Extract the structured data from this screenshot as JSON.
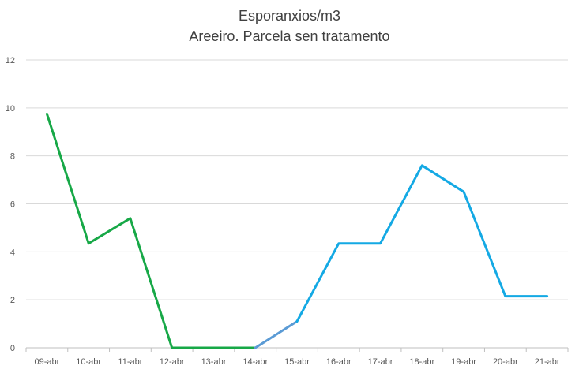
{
  "chart_data": {
    "type": "line",
    "title": "Esporanxios/m3",
    "subtitle": "Areeiro. Parcela sen tratamento",
    "xlabel": "",
    "ylabel": "",
    "categories": [
      "09-abr",
      "10-abr",
      "11-abr",
      "12-abr",
      "13-abr",
      "14-abr",
      "15-abr",
      "16-abr",
      "17-abr",
      "18-abr",
      "19-abr",
      "20-abr",
      "21-abr"
    ],
    "values": [
      9.75,
      4.35,
      5.4,
      0,
      0,
      0,
      1.1,
      4.35,
      4.35,
      7.6,
      6.5,
      2.15,
      2.15
    ],
    "ylim": [
      0,
      12
    ],
    "yticks": [
      0,
      2,
      4,
      6,
      8,
      10,
      12
    ],
    "grid": true,
    "legend": "none",
    "segment_colors": [
      {
        "from": 0,
        "to": 5,
        "color": "#17a847"
      },
      {
        "from": 5,
        "to": 6,
        "color": "#5b9bd5"
      },
      {
        "from": 6,
        "to": 12,
        "color": "#14a9e4"
      }
    ]
  }
}
